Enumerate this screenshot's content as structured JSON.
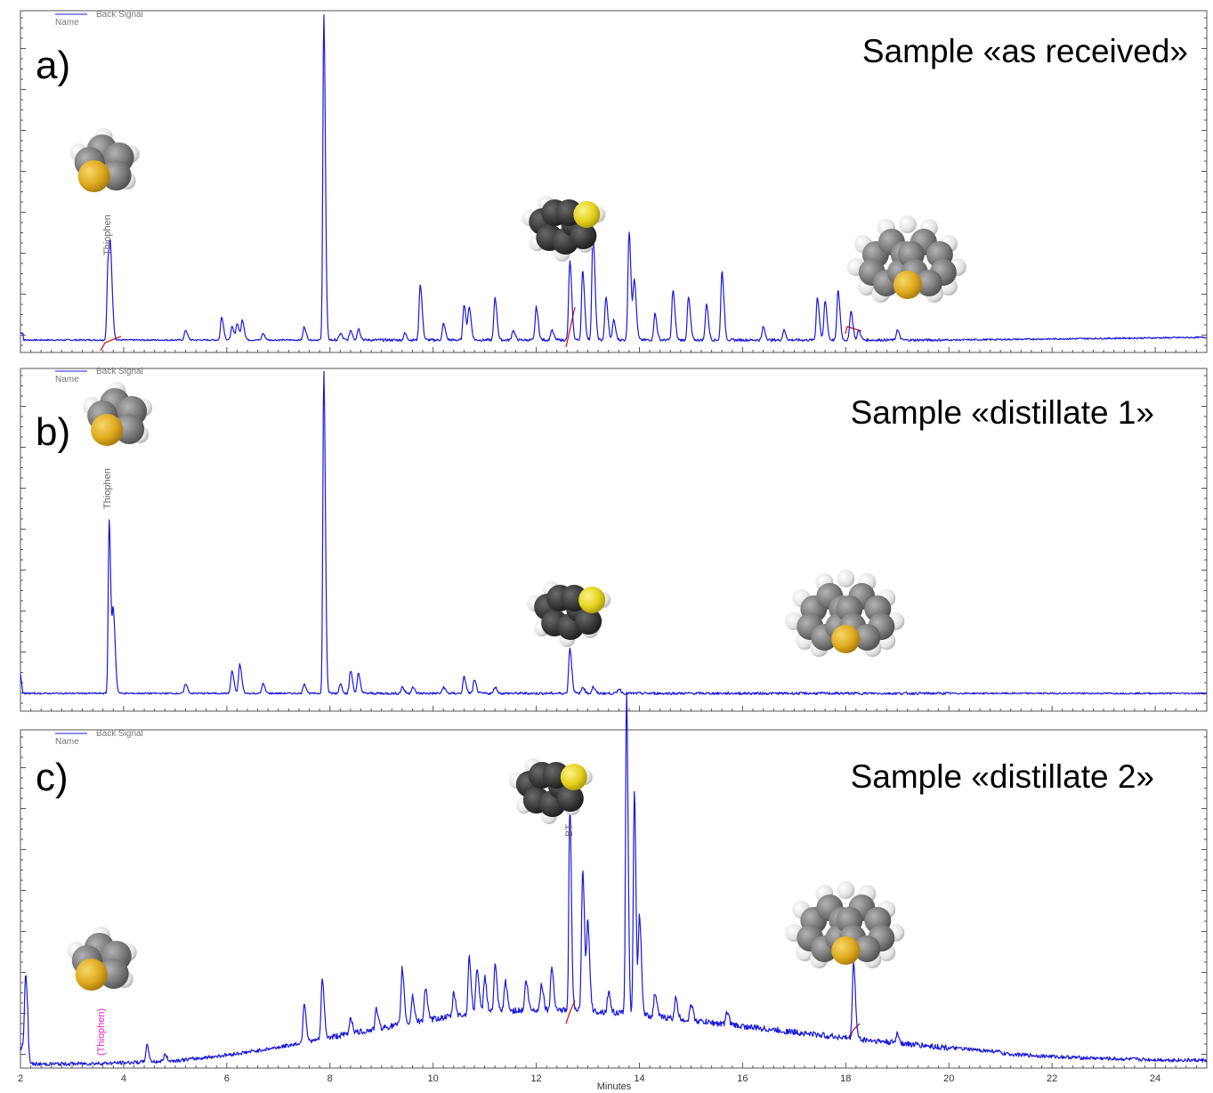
{
  "chart_data": [
    {
      "type": "line",
      "panel_label": "a)",
      "title": "Sample «as received»",
      "legend": {
        "line_label": "Back Signal",
        "name_label": "Name"
      },
      "series": [
        {
          "name": "Back Signal",
          "color": "#1a1adb"
        }
      ],
      "xlim": [
        2,
        25
      ],
      "peak_annotations": [
        {
          "text": "Thiophen",
          "x": 3.7,
          "color": "#777777"
        }
      ],
      "peaks": [
        [
          3.7,
          0.24
        ],
        [
          3.75,
          0.19
        ],
        [
          5.2,
          0.03
        ],
        [
          5.9,
          0.07
        ],
        [
          6.1,
          0.04
        ],
        [
          6.2,
          0.05
        ],
        [
          6.3,
          0.06
        ],
        [
          6.7,
          0.02
        ],
        [
          7.5,
          0.04
        ],
        [
          7.88,
          1.0
        ],
        [
          8.2,
          0.02
        ],
        [
          8.4,
          0.03
        ],
        [
          8.55,
          0.035
        ],
        [
          9.45,
          0.02
        ],
        [
          9.75,
          0.17
        ],
        [
          10.2,
          0.05
        ],
        [
          10.6,
          0.11
        ],
        [
          10.7,
          0.1
        ],
        [
          11.2,
          0.13
        ],
        [
          11.55,
          0.03
        ],
        [
          12.0,
          0.1
        ],
        [
          12.3,
          0.03
        ],
        [
          12.65,
          0.24
        ],
        [
          12.9,
          0.21
        ],
        [
          13.1,
          0.32
        ],
        [
          13.35,
          0.13
        ],
        [
          13.5,
          0.06
        ],
        [
          13.8,
          0.33
        ],
        [
          13.9,
          0.18
        ],
        [
          14.3,
          0.08
        ],
        [
          14.65,
          0.15
        ],
        [
          14.95,
          0.13
        ],
        [
          15.3,
          0.11
        ],
        [
          15.6,
          0.21
        ],
        [
          16.4,
          0.04
        ],
        [
          16.8,
          0.03
        ],
        [
          17.45,
          0.13
        ],
        [
          17.6,
          0.12
        ],
        [
          17.85,
          0.15
        ],
        [
          18.1,
          0.09
        ],
        [
          18.25,
          0.03
        ],
        [
          19.0,
          0.03
        ]
      ],
      "molecules": [
        {
          "kind": "thiophene",
          "x": 3.65
        },
        {
          "kind": "benzothiophene",
          "x": 12.6
        },
        {
          "kind": "dibenzothiophene",
          "x": 19.2
        }
      ]
    },
    {
      "type": "line",
      "panel_label": "b)",
      "title": "Sample «distillate 1»",
      "legend": {
        "line_label": "Back Signal",
        "name_label": "Name"
      },
      "series": [
        {
          "name": "Back Signal",
          "color": "#1a1adb"
        }
      ],
      "xlim": [
        2,
        25
      ],
      "peak_annotations": [
        {
          "text": "Thiophen",
          "x": 3.7,
          "color": "#777777"
        }
      ],
      "peaks": [
        [
          3.72,
          0.54
        ],
        [
          3.8,
          0.25
        ],
        [
          5.2,
          0.03
        ],
        [
          6.1,
          0.07
        ],
        [
          6.25,
          0.09
        ],
        [
          6.7,
          0.03
        ],
        [
          7.5,
          0.03
        ],
        [
          7.88,
          1.0
        ],
        [
          8.2,
          0.03
        ],
        [
          8.4,
          0.07
        ],
        [
          8.55,
          0.06
        ],
        [
          9.4,
          0.02
        ],
        [
          9.6,
          0.02
        ],
        [
          10.2,
          0.02
        ],
        [
          10.6,
          0.05
        ],
        [
          10.8,
          0.04
        ],
        [
          11.2,
          0.02
        ],
        [
          12.65,
          0.14
        ],
        [
          12.9,
          0.02
        ],
        [
          13.1,
          0.02
        ],
        [
          13.6,
          0.015
        ]
      ],
      "molecules": [
        {
          "kind": "thiophene",
          "x": 3.9
        },
        {
          "kind": "benzothiophene",
          "x": 12.7
        },
        {
          "kind": "dibenzothiophene",
          "x": 18.0
        }
      ]
    },
    {
      "type": "line",
      "panel_label": "c)",
      "title": "Sample «distillate 2»",
      "legend": {
        "line_label": "Back Signal",
        "name_label": "Name"
      },
      "series": [
        {
          "name": "Back Signal",
          "color": "#1a1adb"
        }
      ],
      "xlim": [
        2,
        25
      ],
      "xlabel": "Minutes",
      "xticks": [
        2,
        4,
        6,
        8,
        10,
        12,
        14,
        16,
        18,
        20,
        22,
        24
      ],
      "peak_annotations": [
        {
          "text": "(Thiophen)",
          "x": 3.6,
          "color": "#e020c0"
        },
        {
          "text": "BT",
          "x": 12.65,
          "color": "#666666"
        }
      ],
      "peaks": [
        [
          2.1,
          0.22
        ],
        [
          4.45,
          0.05
        ],
        [
          4.8,
          0.02
        ],
        [
          7.5,
          0.12
        ],
        [
          7.85,
          0.18
        ],
        [
          8.4,
          0.05
        ],
        [
          8.9,
          0.06
        ],
        [
          9.4,
          0.17
        ],
        [
          9.6,
          0.08
        ],
        [
          9.85,
          0.1
        ],
        [
          10.4,
          0.07
        ],
        [
          10.7,
          0.17
        ],
        [
          10.85,
          0.14
        ],
        [
          11.0,
          0.11
        ],
        [
          11.2,
          0.14
        ],
        [
          11.4,
          0.09
        ],
        [
          11.8,
          0.09
        ],
        [
          12.1,
          0.08
        ],
        [
          12.3,
          0.13
        ],
        [
          12.65,
          0.63
        ],
        [
          12.9,
          0.42
        ],
        [
          13.0,
          0.26
        ],
        [
          13.4,
          0.06
        ],
        [
          13.75,
          0.97
        ],
        [
          13.9,
          0.68
        ],
        [
          14.0,
          0.3
        ],
        [
          14.3,
          0.07
        ],
        [
          14.7,
          0.06
        ],
        [
          15.0,
          0.05
        ],
        [
          15.7,
          0.04
        ],
        [
          18.15,
          0.23
        ],
        [
          19.0,
          0.03
        ]
      ],
      "molecules": [
        {
          "kind": "thiophene",
          "x": 3.6
        },
        {
          "kind": "benzothiophene",
          "x": 12.35
        },
        {
          "kind": "dibenzothiophene",
          "x": 18.0
        }
      ]
    }
  ],
  "style": {
    "signal_color": "#1a1adb",
    "baseline_marker_color": "#d81818",
    "frame_color": "#555555"
  }
}
